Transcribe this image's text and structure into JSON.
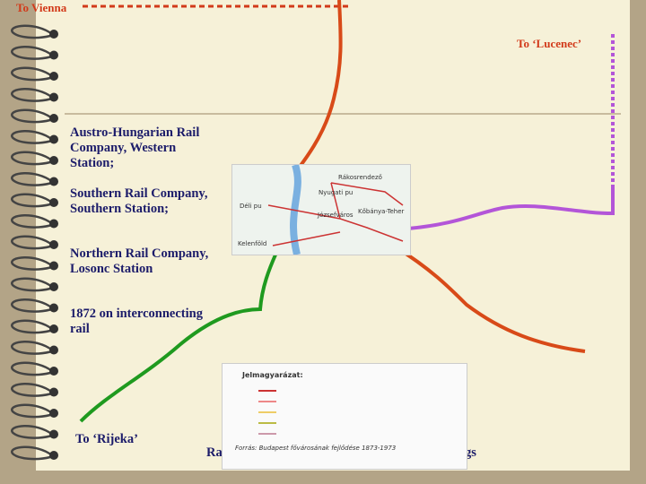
{
  "labels": {
    "vienna": "To Vienna",
    "lucenec": "To ‘Lucenec’",
    "rijeka": "To ‘Rijeka’"
  },
  "items": [
    "Austro-Hungarian Rail Company, Western Station;",
    "Southern Rail Company, Southern Station;",
    "Northern Rail Company, Losonc Station",
    "1872 on interconnecting rail"
  ],
  "caption": {
    "start": "Ra",
    "end": "gs"
  },
  "map": {
    "labels": [
      "Rákosrendező",
      "Nyugati pu",
      "Déli pu",
      "Józsefváros",
      "Kőbánya-Teher",
      "Kelenföld"
    ]
  },
  "legend": {
    "title": "Jelmagyarázat:",
    "source": "Forrás: Budapest fővárosának fejlődése 1873-1973"
  }
}
